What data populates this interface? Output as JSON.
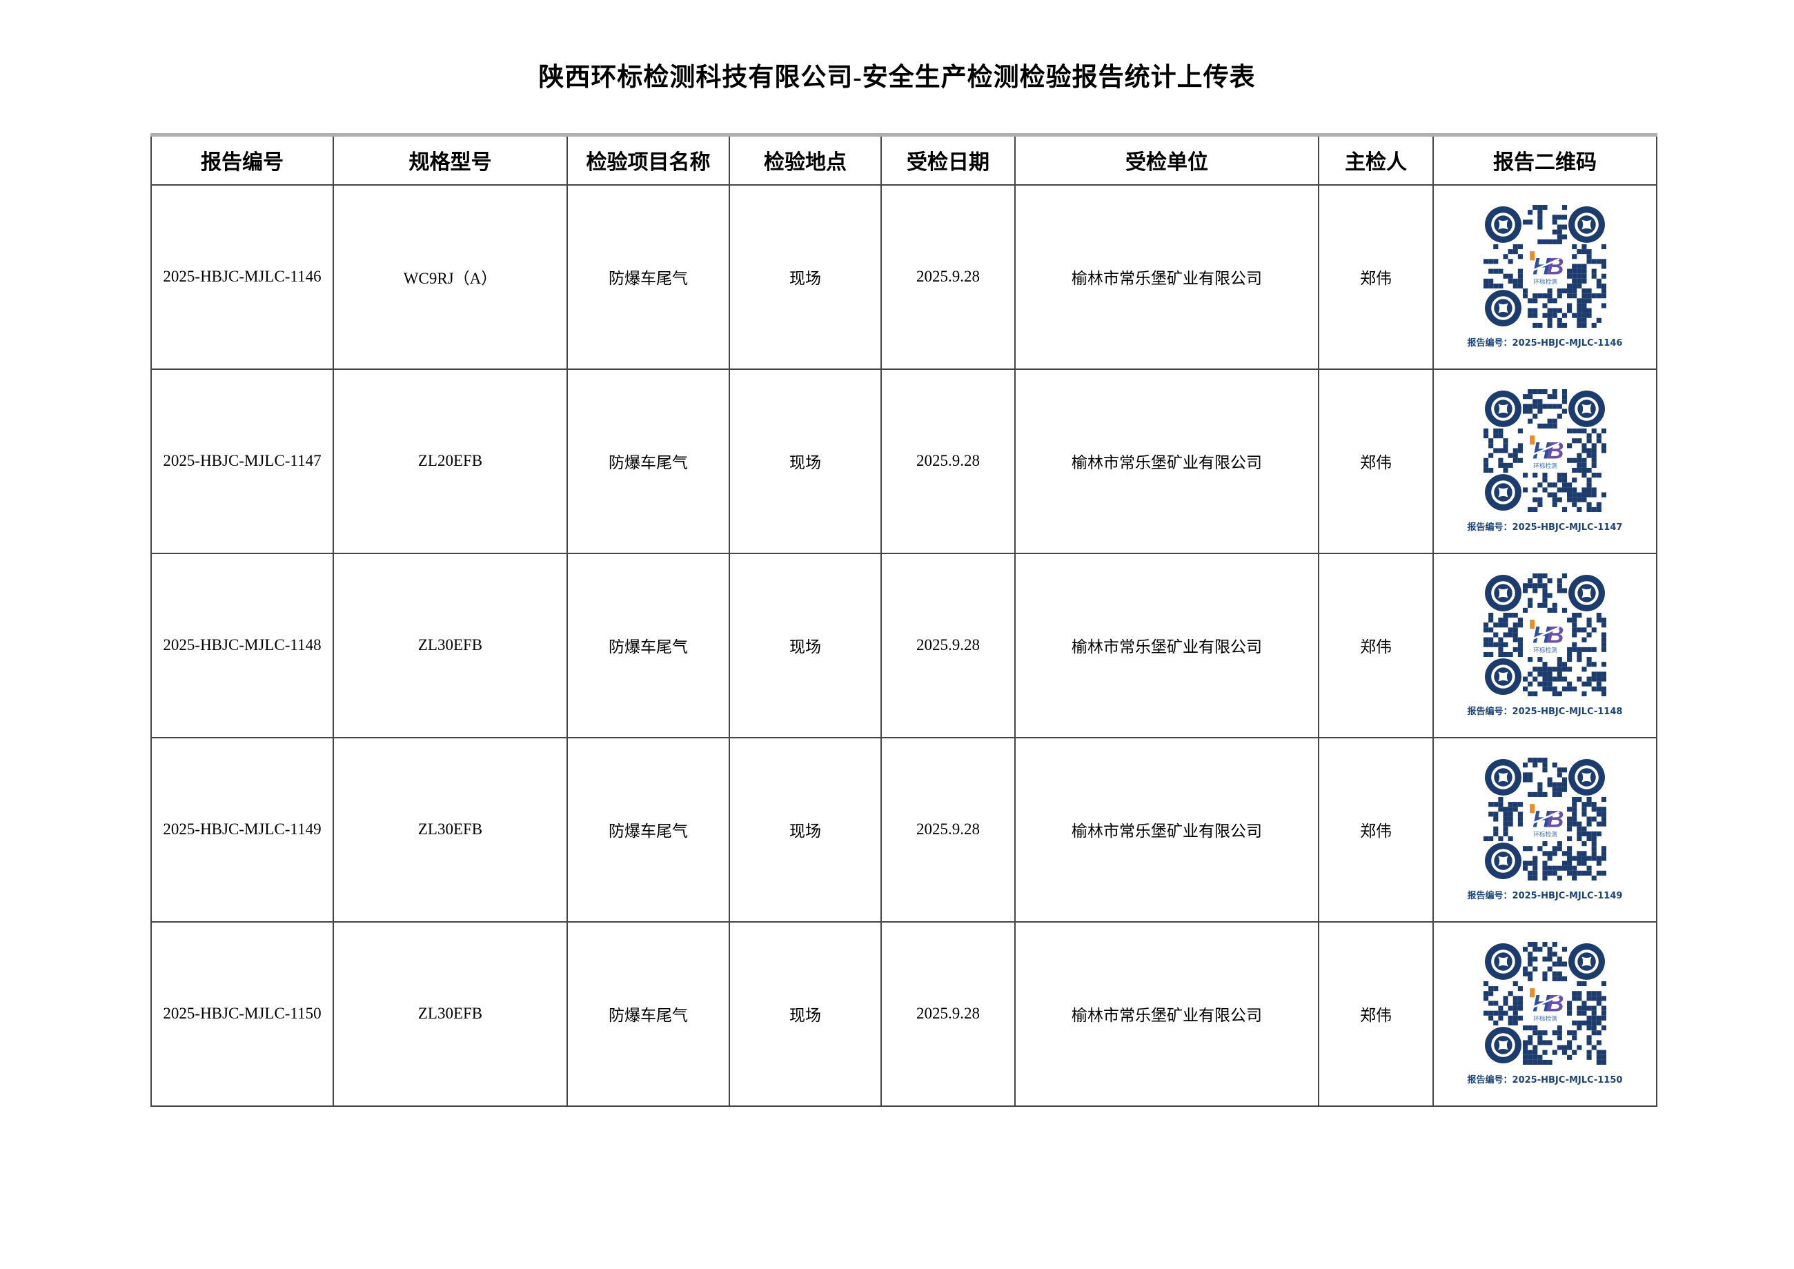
{
  "page": {
    "title": "陕西环标检测科技有限公司-安全生产检测检验报告统计上传表"
  },
  "table": {
    "headers": [
      "报告编号",
      "规格型号",
      "检验项目名称",
      "检验地点",
      "受检日期",
      "受检单位",
      "主检人",
      "报告二维码"
    ],
    "rows": [
      {
        "report_no": "2025-HBJC-MJLC-1146",
        "model": "WC9RJ（A）",
        "project": "防爆车尾气",
        "location": "现场",
        "date": "2025.9.28",
        "unit": "榆林市常乐堡矿业有限公司",
        "inspector": "郑伟",
        "qr_caption": "报告编号：2025-HBJC-MJLC-1146"
      },
      {
        "report_no": "2025-HBJC-MJLC-1147",
        "model": "ZL20EFB",
        "project": "防爆车尾气",
        "location": "现场",
        "date": "2025.9.28",
        "unit": "榆林市常乐堡矿业有限公司",
        "inspector": "郑伟",
        "qr_caption": "报告编号：2025-HBJC-MJLC-1147"
      },
      {
        "report_no": "2025-HBJC-MJLC-1148",
        "model": "ZL30EFB",
        "project": "防爆车尾气",
        "location": "现场",
        "date": "2025.9.28",
        "unit": "榆林市常乐堡矿业有限公司",
        "inspector": "郑伟",
        "qr_caption": "报告编号：2025-HBJC-MJLC-1148"
      },
      {
        "report_no": "2025-HBJC-MJLC-1149",
        "model": "ZL30EFB",
        "project": "防爆车尾气",
        "location": "现场",
        "date": "2025.9.28",
        "unit": "榆林市常乐堡矿业有限公司",
        "inspector": "郑伟",
        "qr_caption": "报告编号：2025-HBJC-MJLC-1149"
      },
      {
        "report_no": "2025-HBJC-MJLC-1150",
        "model": "ZL30EFB",
        "project": "防爆车尾气",
        "location": "现场",
        "date": "2025.9.28",
        "unit": "榆林市常乐堡矿业有限公司",
        "inspector": "郑伟",
        "qr_caption": "报告编号：2025-HBJC-MJLC-1150"
      }
    ]
  },
  "qr": {
    "module_color": "#1d3c6e",
    "caption_color": "#1d4476",
    "logo": {
      "text_h": "H",
      "text_b": "B",
      "subtext": "环标检测",
      "orange": "#f28b1e",
      "blue": "#2d4e9e",
      "purple": "#6a4fa8",
      "subtext_blue": "#2d6cb5"
    }
  }
}
